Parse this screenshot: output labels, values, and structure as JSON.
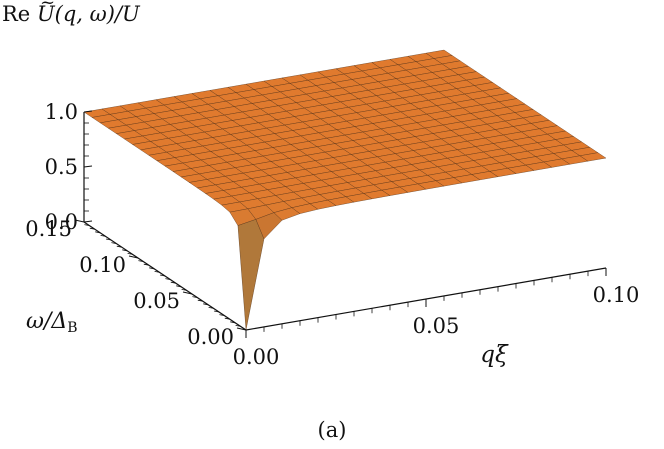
{
  "chart_data": {
    "type": "surface3d",
    "title": "Re Ũ(q,ω)/U",
    "title_parts": {
      "prefix": "Re",
      "symbol": "U",
      "args": "(q, ω)/U"
    },
    "xlabel": "qξ",
    "ylabel": "ω/Δ_B",
    "ylabel_parts": {
      "main": "ω/Δ",
      "sub": "B"
    },
    "zlabel": "Re Ũ(q,ω)/U",
    "xlim": [
      0,
      0.1
    ],
    "ylim": [
      0,
      0.15
    ],
    "zlim": [
      0,
      1.0
    ],
    "x_ticks": [
      "0.00",
      "0.05",
      "0.10"
    ],
    "x_tick_values": [
      0,
      0.05,
      0.1
    ],
    "y_ticks": [
      "0.00",
      "0.05",
      "0.10",
      "0.15"
    ],
    "y_tick_values": [
      0,
      0.05,
      0.1,
      0.15
    ],
    "z_ticks": [
      "0.0",
      "0.5",
      "1.0"
    ],
    "z_tick_values": [
      0,
      0.5,
      1.0
    ],
    "surface_model": "z = (x^2 + y^2) / (x^2 + y^2 + c^2)",
    "surface_scale_c": 0.0025,
    "grid_lines_per_axis": 20,
    "colors": {
      "surface_high": "#E07A2E",
      "surface_low": "#FFE98A",
      "mesh": "#4A2A10",
      "axis": "#111111"
    }
  },
  "caption": "(a)"
}
